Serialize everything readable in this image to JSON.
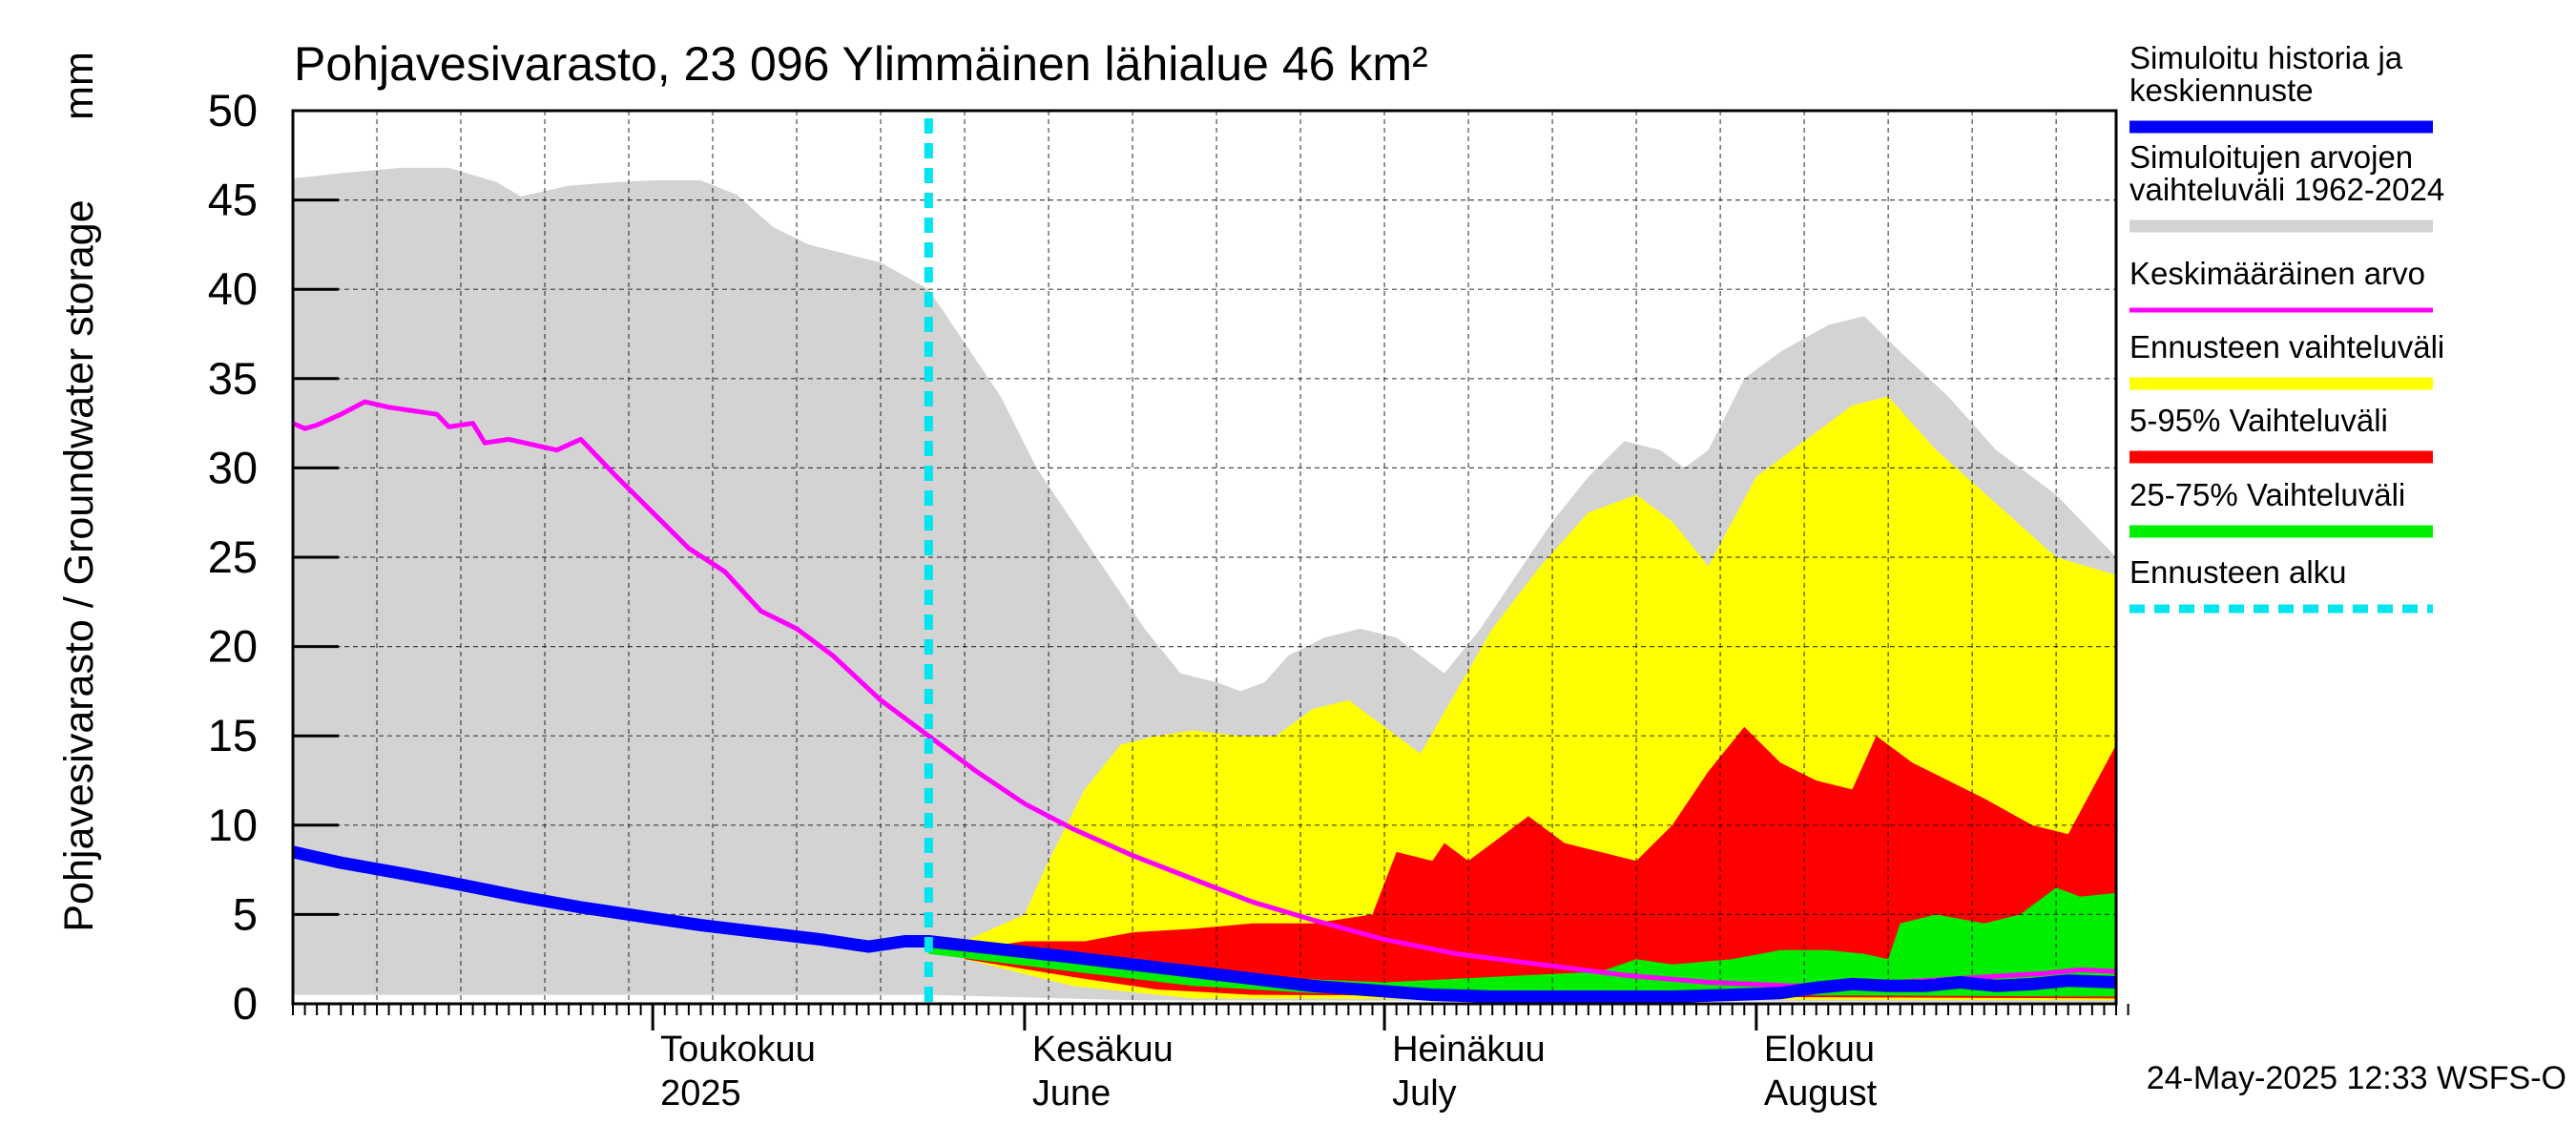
{
  "chart_data": {
    "type": "area",
    "title": "Pohjavesivarasto, 23 096 Ylimmäinen lähialue 46 km²",
    "ylabel": "Pohjavesivarasto / Groundwater storage",
    "yunit": "mm",
    "ylim": [
      0,
      50
    ],
    "yticks": [
      0,
      5,
      10,
      15,
      20,
      25,
      30,
      35,
      40,
      45,
      50
    ],
    "xlim": [
      "2025-04-01",
      "2025-08-31"
    ],
    "grid": true,
    "month_labels": [
      {
        "date": "2025-05-01",
        "line1": "Toukokuu",
        "line2": "2025"
      },
      {
        "date": "2025-06-01",
        "line1": "Kesäkuu",
        "line2": "June"
      },
      {
        "date": "2025-07-01",
        "line1": "Heinäkuu",
        "line2": "July"
      },
      {
        "date": "2025-08-01",
        "line1": "Elokuu",
        "line2": "August"
      }
    ],
    "forecast_start": "2025-05-24",
    "footer": "24-May-2025 12:33 WSFS-O",
    "series": [
      {
        "name": "Simuloitujen arvojen vaihteluväli 1962-2024",
        "kind": "band",
        "color": "#d3d3d3",
        "upper": [
          [
            "2025-04-01",
            46.2
          ],
          [
            "2025-04-05",
            46.5
          ],
          [
            "2025-04-10",
            46.8
          ],
          [
            "2025-04-14",
            46.8
          ],
          [
            "2025-04-18",
            46.0
          ],
          [
            "2025-04-20",
            45.2
          ],
          [
            "2025-04-24",
            45.8
          ],
          [
            "2025-04-28",
            46.0
          ],
          [
            "2025-05-01",
            46.1
          ],
          [
            "2025-05-05",
            46.1
          ],
          [
            "2025-05-08",
            45.3
          ],
          [
            "2025-05-11",
            43.5
          ],
          [
            "2025-05-14",
            42.5
          ],
          [
            "2025-05-17",
            42.0
          ],
          [
            "2025-05-20",
            41.5
          ],
          [
            "2025-05-24",
            40.0
          ],
          [
            "2025-05-27",
            37.0
          ],
          [
            "2025-05-30",
            34.0
          ],
          [
            "2025-06-02",
            30.0
          ],
          [
            "2025-06-05",
            27.0
          ],
          [
            "2025-06-08",
            24.0
          ],
          [
            "2025-06-11",
            21.0
          ],
          [
            "2025-06-14",
            18.5
          ],
          [
            "2025-06-17",
            18.0
          ],
          [
            "2025-06-19",
            17.5
          ],
          [
            "2025-06-21",
            18.0
          ],
          [
            "2025-06-23",
            19.5
          ],
          [
            "2025-06-26",
            20.5
          ],
          [
            "2025-06-29",
            21.0
          ],
          [
            "2025-07-02",
            20.5
          ],
          [
            "2025-07-04",
            19.5
          ],
          [
            "2025-07-06",
            18.5
          ],
          [
            "2025-07-09",
            21.0
          ],
          [
            "2025-07-12",
            24.0
          ],
          [
            "2025-07-15",
            27.0
          ],
          [
            "2025-07-18",
            29.5
          ],
          [
            "2025-07-21",
            31.5
          ],
          [
            "2025-07-24",
            31.0
          ],
          [
            "2025-07-26",
            30.0
          ],
          [
            "2025-07-28",
            31.0
          ],
          [
            "2025-07-31",
            35.0
          ],
          [
            "2025-08-03",
            36.5
          ],
          [
            "2025-08-07",
            38.0
          ],
          [
            "2025-08-10",
            38.5
          ],
          [
            "2025-08-13",
            36.5
          ],
          [
            "2025-08-17",
            34.0
          ],
          [
            "2025-08-21",
            31.0
          ],
          [
            "2025-08-26",
            28.5
          ],
          [
            "2025-08-31",
            25.0
          ]
        ],
        "lower": [
          [
            "2025-04-01",
            0.5
          ],
          [
            "2025-05-24",
            0.5
          ],
          [
            "2025-06-10",
            0.2
          ],
          [
            "2025-08-31",
            0.1
          ]
        ]
      },
      {
        "name": "Ennusteen vaihteluväli",
        "kind": "band",
        "color": "#ffff00",
        "upper": [
          [
            "2025-05-27",
            3.5
          ],
          [
            "2025-06-01",
            5.0
          ],
          [
            "2025-06-03",
            8.0
          ],
          [
            "2025-06-06",
            12.0
          ],
          [
            "2025-06-09",
            14.5
          ],
          [
            "2025-06-12",
            15.0
          ],
          [
            "2025-06-15",
            15.3
          ],
          [
            "2025-06-19",
            15.0
          ],
          [
            "2025-06-22",
            15.0
          ],
          [
            "2025-06-25",
            16.5
          ],
          [
            "2025-06-28",
            17.0
          ],
          [
            "2025-07-01",
            15.5
          ],
          [
            "2025-07-04",
            14.0
          ],
          [
            "2025-07-07",
            17.5
          ],
          [
            "2025-07-10",
            21.0
          ],
          [
            "2025-07-14",
            24.5
          ],
          [
            "2025-07-18",
            27.5
          ],
          [
            "2025-07-22",
            28.5
          ],
          [
            "2025-07-25",
            27.0
          ],
          [
            "2025-07-28",
            24.5
          ],
          [
            "2025-08-01",
            29.5
          ],
          [
            "2025-08-05",
            31.5
          ],
          [
            "2025-08-09",
            33.5
          ],
          [
            "2025-08-12",
            34.0
          ],
          [
            "2025-08-16",
            31.0
          ],
          [
            "2025-08-21",
            28.0
          ],
          [
            "2025-08-26",
            25.0
          ],
          [
            "2025-08-31",
            24.0
          ]
        ],
        "lower": [
          [
            "2025-05-27",
            2.5
          ],
          [
            "2025-06-05",
            1.0
          ],
          [
            "2025-06-15",
            0.3
          ],
          [
            "2025-08-31",
            0.2
          ]
        ]
      },
      {
        "name": "5-95% Vaihteluväli",
        "kind": "band",
        "color": "#ff0000",
        "upper": [
          [
            "2025-05-27",
            3.0
          ],
          [
            "2025-06-01",
            3.5
          ],
          [
            "2025-06-06",
            3.5
          ],
          [
            "2025-06-10",
            4.0
          ],
          [
            "2025-06-15",
            4.2
          ],
          [
            "2025-06-20",
            4.5
          ],
          [
            "2025-06-25",
            4.5
          ],
          [
            "2025-06-30",
            5.0
          ],
          [
            "2025-07-02",
            8.5
          ],
          [
            "2025-07-05",
            8.0
          ],
          [
            "2025-07-06",
            9.0
          ],
          [
            "2025-07-08",
            8.0
          ],
          [
            "2025-07-10",
            9.0
          ],
          [
            "2025-07-13",
            10.5
          ],
          [
            "2025-07-16",
            9.0
          ],
          [
            "2025-07-19",
            8.5
          ],
          [
            "2025-07-22",
            8.0
          ],
          [
            "2025-07-25",
            10.0
          ],
          [
            "2025-07-28",
            13.0
          ],
          [
            "2025-07-31",
            15.5
          ],
          [
            "2025-08-03",
            13.5
          ],
          [
            "2025-08-06",
            12.5
          ],
          [
            "2025-08-09",
            12.0
          ],
          [
            "2025-08-11",
            15.0
          ],
          [
            "2025-08-14",
            13.5
          ],
          [
            "2025-08-17",
            12.5
          ],
          [
            "2025-08-20",
            11.5
          ],
          [
            "2025-08-24",
            10.0
          ],
          [
            "2025-08-27",
            9.5
          ],
          [
            "2025-08-31",
            14.5
          ]
        ],
        "lower": [
          [
            "2025-05-27",
            2.5
          ],
          [
            "2025-06-05",
            1.5
          ],
          [
            "2025-06-12",
            0.8
          ],
          [
            "2025-06-20",
            0.5
          ],
          [
            "2025-08-31",
            0.3
          ]
        ]
      },
      {
        "name": "25-75% Vaihteluväli",
        "kind": "band",
        "color": "#00ee00",
        "upper": [
          [
            "2025-05-24",
            3.2
          ],
          [
            "2025-06-01",
            2.8
          ],
          [
            "2025-06-10",
            2.0
          ],
          [
            "2025-06-20",
            1.5
          ],
          [
            "2025-07-01",
            1.2
          ],
          [
            "2025-07-10",
            1.5
          ],
          [
            "2025-07-19",
            1.8
          ],
          [
            "2025-07-22",
            2.5
          ],
          [
            "2025-07-25",
            2.2
          ],
          [
            "2025-07-30",
            2.5
          ],
          [
            "2025-08-03",
            3.0
          ],
          [
            "2025-08-07",
            3.0
          ],
          [
            "2025-08-10",
            2.8
          ],
          [
            "2025-08-12",
            2.5
          ],
          [
            "2025-08-13",
            4.5
          ],
          [
            "2025-08-16",
            5.0
          ],
          [
            "2025-08-20",
            4.5
          ],
          [
            "2025-08-23",
            5.0
          ],
          [
            "2025-08-26",
            6.5
          ],
          [
            "2025-08-28",
            6.0
          ],
          [
            "2025-08-31",
            6.2
          ]
        ],
        "lower": [
          [
            "2025-05-24",
            2.8
          ],
          [
            "2025-06-05",
            1.8
          ],
          [
            "2025-06-15",
            1.0
          ],
          [
            "2025-06-25",
            0.6
          ],
          [
            "2025-08-31",
            0.4
          ]
        ]
      },
      {
        "name": "Keskimääräinen arvo",
        "kind": "line",
        "color": "#ff00ff",
        "width": 5,
        "points": [
          [
            "2025-04-01",
            32.5
          ],
          [
            "2025-04-02",
            32.2
          ],
          [
            "2025-04-03",
            32.4
          ],
          [
            "2025-04-05",
            33.0
          ],
          [
            "2025-04-07",
            33.7
          ],
          [
            "2025-04-09",
            33.4
          ],
          [
            "2025-04-11",
            33.2
          ],
          [
            "2025-04-13",
            33.0
          ],
          [
            "2025-04-14",
            32.3
          ],
          [
            "2025-04-16",
            32.5
          ],
          [
            "2025-04-17",
            31.4
          ],
          [
            "2025-04-19",
            31.6
          ],
          [
            "2025-04-21",
            31.3
          ],
          [
            "2025-04-23",
            31.0
          ],
          [
            "2025-04-25",
            31.6
          ],
          [
            "2025-04-28",
            29.5
          ],
          [
            "2025-05-01",
            27.5
          ],
          [
            "2025-05-04",
            25.5
          ],
          [
            "2025-05-07",
            24.2
          ],
          [
            "2025-05-10",
            22.0
          ],
          [
            "2025-05-13",
            21.0
          ],
          [
            "2025-05-16",
            19.5
          ],
          [
            "2025-05-20",
            17.0
          ],
          [
            "2025-05-24",
            15.0
          ],
          [
            "2025-05-28",
            13.0
          ],
          [
            "2025-06-01",
            11.2
          ],
          [
            "2025-06-05",
            9.8
          ],
          [
            "2025-06-10",
            8.3
          ],
          [
            "2025-06-15",
            7.0
          ],
          [
            "2025-06-20",
            5.7
          ],
          [
            "2025-06-25",
            4.7
          ],
          [
            "2025-07-01",
            3.6
          ],
          [
            "2025-07-07",
            2.8
          ],
          [
            "2025-07-14",
            2.2
          ],
          [
            "2025-07-21",
            1.6
          ],
          [
            "2025-07-28",
            1.2
          ],
          [
            "2025-08-04",
            1.0
          ],
          [
            "2025-08-10",
            1.1
          ],
          [
            "2025-08-15",
            1.3
          ],
          [
            "2025-08-20",
            1.5
          ],
          [
            "2025-08-25",
            1.7
          ],
          [
            "2025-08-28",
            1.9
          ],
          [
            "2025-08-31",
            1.8
          ]
        ]
      },
      {
        "name": "Simuloitu historia ja keskiennuste",
        "kind": "line",
        "color": "#0000ff",
        "width": 13,
        "points": [
          [
            "2025-04-01",
            8.5
          ],
          [
            "2025-04-05",
            7.9
          ],
          [
            "2025-04-10",
            7.3
          ],
          [
            "2025-04-14",
            6.8
          ],
          [
            "2025-04-20",
            6.0
          ],
          [
            "2025-04-25",
            5.4
          ],
          [
            "2025-04-30",
            4.9
          ],
          [
            "2025-05-05",
            4.4
          ],
          [
            "2025-05-10",
            4.0
          ],
          [
            "2025-05-15",
            3.6
          ],
          [
            "2025-05-19",
            3.2
          ],
          [
            "2025-05-22",
            3.5
          ],
          [
            "2025-05-24",
            3.5
          ],
          [
            "2025-05-28",
            3.2
          ],
          [
            "2025-06-01",
            2.9
          ],
          [
            "2025-06-05",
            2.6
          ],
          [
            "2025-06-10",
            2.2
          ],
          [
            "2025-06-15",
            1.8
          ],
          [
            "2025-06-20",
            1.4
          ],
          [
            "2025-06-25",
            1.0
          ],
          [
            "2025-07-01",
            0.7
          ],
          [
            "2025-07-05",
            0.5
          ],
          [
            "2025-07-10",
            0.4
          ],
          [
            "2025-07-15",
            0.4
          ],
          [
            "2025-07-20",
            0.4
          ],
          [
            "2025-07-25",
            0.4
          ],
          [
            "2025-07-30",
            0.5
          ],
          [
            "2025-08-03",
            0.6
          ],
          [
            "2025-08-06",
            0.9
          ],
          [
            "2025-08-09",
            1.1
          ],
          [
            "2025-08-12",
            1.0
          ],
          [
            "2025-08-15",
            1.0
          ],
          [
            "2025-08-18",
            1.2
          ],
          [
            "2025-08-21",
            1.0
          ],
          [
            "2025-08-24",
            1.1
          ],
          [
            "2025-08-27",
            1.3
          ],
          [
            "2025-08-31",
            1.2
          ]
        ]
      },
      {
        "name": "Ennusteen alku",
        "kind": "vline",
        "color": "#00e5ee"
      }
    ]
  },
  "legend": [
    {
      "lines": [
        "Simuloitu historia ja",
        "keskiennuste"
      ],
      "color": "#0000ff",
      "style": "solid",
      "width": 13
    },
    {
      "lines": [
        "Simuloitujen arvojen",
        "vaihteluväli 1962-2024"
      ],
      "color": "#d3d3d3",
      "style": "solid",
      "width": 13
    },
    {
      "lines": [
        "Keskimääräinen arvo"
      ],
      "color": "#ff00ff",
      "style": "solid",
      "width": 5
    },
    {
      "lines": [
        "Ennusteen vaihteluväli"
      ],
      "color": "#ffff00",
      "style": "solid",
      "width": 13
    },
    {
      "lines": [
        "5-95% Vaihteluväli"
      ],
      "color": "#ff0000",
      "style": "solid",
      "width": 13
    },
    {
      "lines": [
        "25-75% Vaihteluväli"
      ],
      "color": "#00ee00",
      "style": "solid",
      "width": 13
    },
    {
      "lines": [
        "Ennusteen alku"
      ],
      "color": "#00e5ee",
      "style": "dashed",
      "width": 9
    }
  ]
}
